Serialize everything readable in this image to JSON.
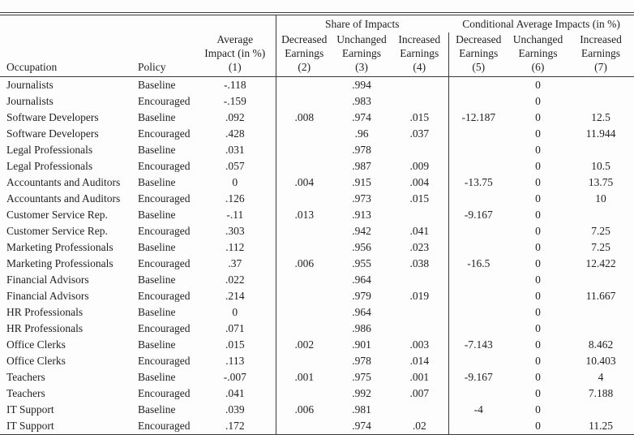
{
  "colors": {
    "background": "#fdfdfd",
    "text": "#1f1f1f",
    "rule": "#3a3a3a"
  },
  "table": {
    "groups": {
      "share": "Share of Impacts",
      "conditional": "Conditional Average Impacts (in %)"
    },
    "columns": [
      {
        "l1": "",
        "l2": "",
        "l3": "Occupation"
      },
      {
        "l1": "",
        "l2": "",
        "l3": "Policy"
      },
      {
        "l1": "Average",
        "l2": "Impact (in %)",
        "l3": "(1)"
      },
      {
        "l1": "Decreased",
        "l2": "Earnings",
        "l3": "(2)"
      },
      {
        "l1": "Unchanged",
        "l2": "Earnings",
        "l3": "(3)"
      },
      {
        "l1": "Increased",
        "l2": "Earnings",
        "l3": "(4)"
      },
      {
        "l1": "Decreased",
        "l2": "Earnings",
        "l3": "(5)"
      },
      {
        "l1": "Unchanged",
        "l2": "Earnings",
        "l3": "(6)"
      },
      {
        "l1": "Increased",
        "l2": "Earnings",
        "l3": "(7)"
      }
    ],
    "column_ids": [
      "occupation",
      "policy",
      "average-impact",
      "share-decreased-earnings",
      "share-unchanged-earnings",
      "share-increased-earnings",
      "conditional-decreased-earnings",
      "conditional-unchanged-earnings",
      "conditional-increased-earnings"
    ],
    "rows": [
      [
        "Journalists",
        "Baseline",
        "-.118",
        "",
        ".994",
        "",
        "",
        "0",
        ""
      ],
      [
        "Journalists",
        "Encouraged",
        "-.159",
        "",
        ".983",
        "",
        "",
        "0",
        ""
      ],
      [
        "Software Developers",
        "Baseline",
        ".092",
        ".008",
        ".974",
        ".015",
        "-12.187",
        "0",
        "12.5"
      ],
      [
        "Software Developers",
        "Encouraged",
        ".428",
        "",
        ".96",
        ".037",
        "",
        "0",
        "11.944"
      ],
      [
        "Legal Professionals",
        "Baseline",
        ".031",
        "",
        ".978",
        "",
        "",
        "0",
        ""
      ],
      [
        "Legal Professionals",
        "Encouraged",
        ".057",
        "",
        ".987",
        ".009",
        "",
        "0",
        "10.5"
      ],
      [
        "Accountants and Auditors",
        "Baseline",
        "0",
        ".004",
        ".915",
        ".004",
        "-13.75",
        "0",
        "13.75"
      ],
      [
        "Accountants and Auditors",
        "Encouraged",
        ".126",
        "",
        ".973",
        ".015",
        "",
        "0",
        "10"
      ],
      [
        "Customer Service Rep.",
        "Baseline",
        "-.11",
        ".013",
        ".913",
        "",
        "-9.167",
        "0",
        ""
      ],
      [
        "Customer Service Rep.",
        "Encouraged",
        ".303",
        "",
        ".942",
        ".041",
        "",
        "0",
        "7.25"
      ],
      [
        "Marketing Professionals",
        "Baseline",
        ".112",
        "",
        ".956",
        ".023",
        "",
        "0",
        "7.25"
      ],
      [
        "Marketing Professionals",
        "Encouraged",
        ".37",
        ".006",
        ".955",
        ".038",
        "-16.5",
        "0",
        "12.422"
      ],
      [
        "Financial Advisors",
        "Baseline",
        ".022",
        "",
        ".964",
        "",
        "",
        "0",
        ""
      ],
      [
        "Financial Advisors",
        "Encouraged",
        ".214",
        "",
        ".979",
        ".019",
        "",
        "0",
        "11.667"
      ],
      [
        "HR Professionals",
        "Baseline",
        "0",
        "",
        ".964",
        "",
        "",
        "0",
        ""
      ],
      [
        "HR Professionals",
        "Encouraged",
        ".071",
        "",
        ".986",
        "",
        "",
        "0",
        ""
      ],
      [
        "Office Clerks",
        "Baseline",
        ".015",
        ".002",
        ".901",
        ".003",
        "-7.143",
        "0",
        "8.462"
      ],
      [
        "Office Clerks",
        "Encouraged",
        ".113",
        "",
        ".978",
        ".014",
        "",
        "0",
        "10.403"
      ],
      [
        "Teachers",
        "Baseline",
        "-.007",
        ".001",
        ".975",
        ".001",
        "-9.167",
        "0",
        "4"
      ],
      [
        "Teachers",
        "Encouraged",
        ".041",
        "",
        ".992",
        ".007",
        "",
        "0",
        "7.188"
      ],
      [
        "IT Support",
        "Baseline",
        ".039",
        ".006",
        ".981",
        "",
        "-4",
        "0",
        ""
      ],
      [
        "IT Support",
        "Encouraged",
        ".172",
        "",
        ".974",
        ".02",
        "",
        "0",
        "11.25"
      ]
    ]
  }
}
